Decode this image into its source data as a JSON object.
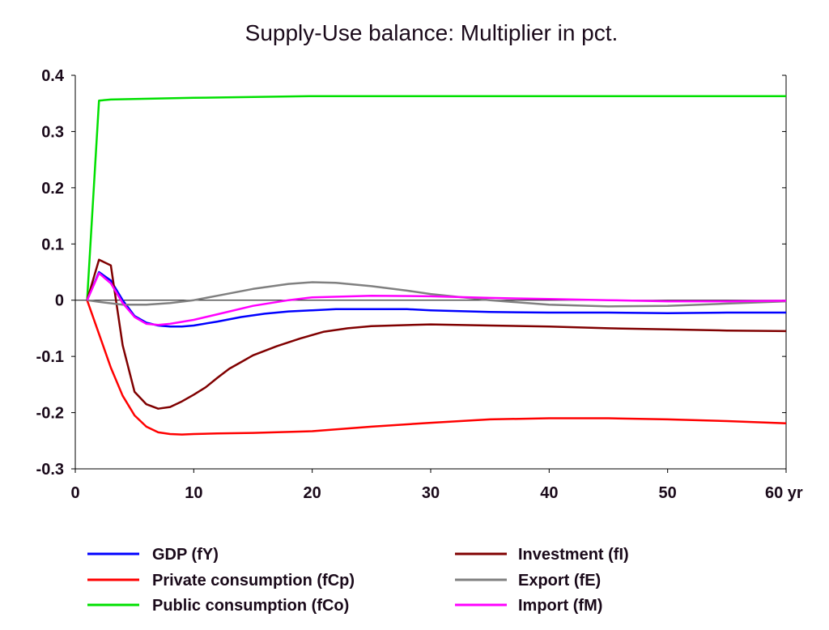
{
  "chart_data": {
    "type": "line",
    "title": "Supply-Use balance: Multiplier in pct.",
    "xlabel": "",
    "ylabel": "",
    "x_unit": "yr",
    "xlim": [
      0,
      60
    ],
    "ylim": [
      -0.3,
      0.4
    ],
    "x_ticks": [
      0,
      10,
      20,
      30,
      40,
      50,
      60
    ],
    "x_tick_labels": [
      "0",
      "10",
      "20",
      "30",
      "40",
      "50",
      "60 yr"
    ],
    "y_ticks": [
      0.4,
      0.3,
      0.2,
      0.1,
      0,
      -0.1,
      -0.2,
      -0.3
    ],
    "y_tick_labels": [
      "0.4",
      "0.3",
      "0.2",
      "0.1",
      "0",
      "-0.1",
      "-0.2",
      "-0.3"
    ],
    "zero_line": true,
    "grid": false,
    "legend_placement": "bottom",
    "series": [
      {
        "name": "GDP (fY)",
        "color": "#0000ff",
        "x": [
          1,
          2,
          3,
          4,
          5,
          6,
          7,
          8,
          9,
          10,
          12,
          14,
          16,
          18,
          20,
          22,
          25,
          28,
          30,
          35,
          40,
          45,
          50,
          55,
          60
        ],
        "y": [
          0,
          0.05,
          0.035,
          0.0,
          -0.028,
          -0.04,
          -0.045,
          -0.047,
          -0.047,
          -0.045,
          -0.038,
          -0.03,
          -0.024,
          -0.02,
          -0.018,
          -0.016,
          -0.016,
          -0.016,
          -0.018,
          -0.021,
          -0.022,
          -0.022,
          -0.023,
          -0.022,
          -0.022
        ]
      },
      {
        "name": "Private consumption (fCp)",
        "color": "#ff0000",
        "x": [
          1,
          2,
          3,
          4,
          5,
          6,
          7,
          8,
          9,
          10,
          12,
          15,
          20,
          25,
          30,
          35,
          40,
          45,
          50,
          55,
          60
        ],
        "y": [
          0,
          -0.06,
          -0.12,
          -0.17,
          -0.205,
          -0.225,
          -0.235,
          -0.238,
          -0.239,
          -0.238,
          -0.237,
          -0.236,
          -0.233,
          -0.225,
          -0.218,
          -0.212,
          -0.21,
          -0.21,
          -0.212,
          -0.215,
          -0.219
        ]
      },
      {
        "name": "Public consumption (fCo)",
        "color": "#00e000",
        "x": [
          1,
          2,
          3,
          5,
          10,
          20,
          30,
          40,
          50,
          60
        ],
        "y": [
          0,
          0.355,
          0.357,
          0.358,
          0.36,
          0.363,
          0.363,
          0.363,
          0.363,
          0.363
        ]
      },
      {
        "name": "Investment (fI)",
        "color": "#800000",
        "x": [
          1,
          2,
          3,
          4,
          5,
          6,
          7,
          8,
          9,
          10,
          11,
          12,
          13,
          14,
          15,
          17,
          19,
          21,
          23,
          25,
          30,
          35,
          40,
          45,
          50,
          55,
          60
        ],
        "y": [
          0,
          0.072,
          0.062,
          -0.08,
          -0.163,
          -0.185,
          -0.193,
          -0.19,
          -0.18,
          -0.168,
          -0.155,
          -0.138,
          -0.122,
          -0.11,
          -0.098,
          -0.082,
          -0.068,
          -0.056,
          -0.05,
          -0.046,
          -0.043,
          -0.045,
          -0.047,
          -0.05,
          -0.052,
          -0.054,
          -0.055
        ]
      },
      {
        "name": "Export (fE)",
        "color": "#808080",
        "x": [
          1,
          2,
          4,
          6,
          8,
          10,
          12,
          15,
          18,
          20,
          22,
          25,
          28,
          30,
          35,
          40,
          45,
          50,
          55,
          60
        ],
        "y": [
          0,
          -0.003,
          -0.008,
          -0.008,
          -0.005,
          0.0,
          0.008,
          0.02,
          0.029,
          0.032,
          0.031,
          0.025,
          0.017,
          0.011,
          0.0,
          -0.008,
          -0.011,
          -0.01,
          -0.006,
          -0.002
        ]
      },
      {
        "name": "Import (fM)",
        "color": "#ff00ff",
        "x": [
          1,
          2,
          3,
          4,
          5,
          6,
          7,
          8,
          10,
          12,
          15,
          18,
          20,
          25,
          30,
          35,
          40,
          45,
          50,
          55,
          60
        ],
        "y": [
          0,
          0.048,
          0.03,
          -0.005,
          -0.03,
          -0.042,
          -0.044,
          -0.042,
          -0.035,
          -0.025,
          -0.01,
          0.0,
          0.005,
          0.008,
          0.007,
          0.004,
          0.002,
          0.0,
          -0.002,
          -0.002,
          -0.001
        ]
      }
    ]
  }
}
